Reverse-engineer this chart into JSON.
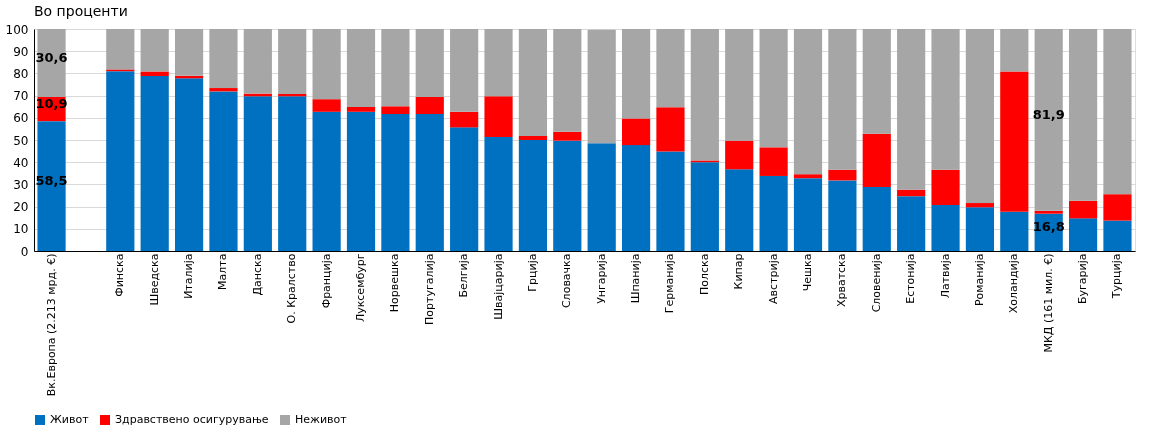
{
  "chart_data": {
    "type": "bar",
    "stacked": true,
    "title": "Во проценти",
    "categories": [
      "Вк.Европа (2.213 мрд. €)",
      null,
      "Финска",
      "Шведска",
      "Италија",
      "Малта",
      "Данска",
      "О. Кралство",
      "Франција",
      "Луксембург",
      "Норвешка",
      "Португалија",
      "Белгија",
      "Швајцарија",
      "Грција",
      "Словачка",
      "Унгарија",
      "Шпанија",
      "Германија",
      "Полска",
      "Кипар",
      "Австрија",
      "Чешка",
      "Хрватска",
      "Словенија",
      "Естонија",
      "Латвија",
      "Романија",
      "Холандија",
      "МКД (161 мил. €)",
      "Бугарија",
      "Турција"
    ],
    "series": [
      {
        "name": "Живот",
        "color": "#0070c0",
        "values": [
          58.5,
          null,
          81.0,
          78.8,
          77.8,
          71.9,
          69.7,
          69.7,
          62.7,
          62.7,
          61.7,
          61.7,
          55.7,
          51.3,
          50.0,
          49.7,
          48.5,
          47.7,
          44.8,
          40.0,
          36.8,
          33.8,
          32.8,
          31.8,
          28.8,
          24.7,
          20.7,
          19.7,
          17.7,
          16.8,
          14.7,
          13.7
        ],
        "value_labels": [
          "58,5",
          null,
          null,
          null,
          null,
          null,
          null,
          null,
          null,
          null,
          null,
          null,
          null,
          null,
          null,
          null,
          null,
          null,
          null,
          null,
          null,
          null,
          null,
          null,
          null,
          null,
          null,
          null,
          null,
          "16,8",
          null,
          null
        ]
      },
      {
        "name": "Здравствено осигурување",
        "color": "#ff0000",
        "values": [
          10.9,
          null,
          0.8,
          2.1,
          1.1,
          1.5,
          1.2,
          1.0,
          5.7,
          2.2,
          3.5,
          7.7,
          7.0,
          18.4,
          1.8,
          4.0,
          null,
          12.0,
          19.9,
          0.8,
          12.9,
          12.9,
          1.8,
          4.8,
          24.0,
          2.9,
          15.9,
          1.9,
          63.2,
          1.3,
          7.9,
          11.9
        ],
        "value_labels": [
          "10,9",
          null,
          null,
          null,
          null,
          null,
          null,
          null,
          null,
          null,
          null,
          null,
          null,
          null,
          null,
          null,
          null,
          null,
          null,
          null,
          null,
          null,
          null,
          null,
          null,
          null,
          null,
          null,
          null,
          null,
          null,
          null
        ]
      },
      {
        "name": "Неживот",
        "color": "#a6a6a6",
        "values": [
          30.6,
          null,
          18.2,
          19.1,
          21.1,
          26.6,
          29.1,
          29.3,
          31.6,
          35.1,
          34.8,
          30.6,
          37.3,
          30.3,
          48.2,
          46.3,
          51.2,
          40.3,
          35.3,
          59.2,
          50.3,
          53.3,
          65.4,
          63.4,
          47.2,
          72.4,
          63.4,
          78.4,
          19.1,
          81.9,
          77.4,
          74.4
        ],
        "value_labels": [
          "30,6",
          null,
          null,
          null,
          null,
          null,
          null,
          null,
          null,
          null,
          null,
          null,
          null,
          null,
          null,
          null,
          null,
          null,
          null,
          null,
          null,
          null,
          null,
          null,
          null,
          null,
          null,
          null,
          null,
          "81,9",
          null,
          null
        ]
      }
    ],
    "ylim": [
      0,
      100
    ],
    "yticks": [
      0,
      10,
      20,
      30,
      40,
      50,
      60,
      70,
      80,
      90,
      100
    ],
    "grid": "y",
    "legend": "bottom"
  }
}
